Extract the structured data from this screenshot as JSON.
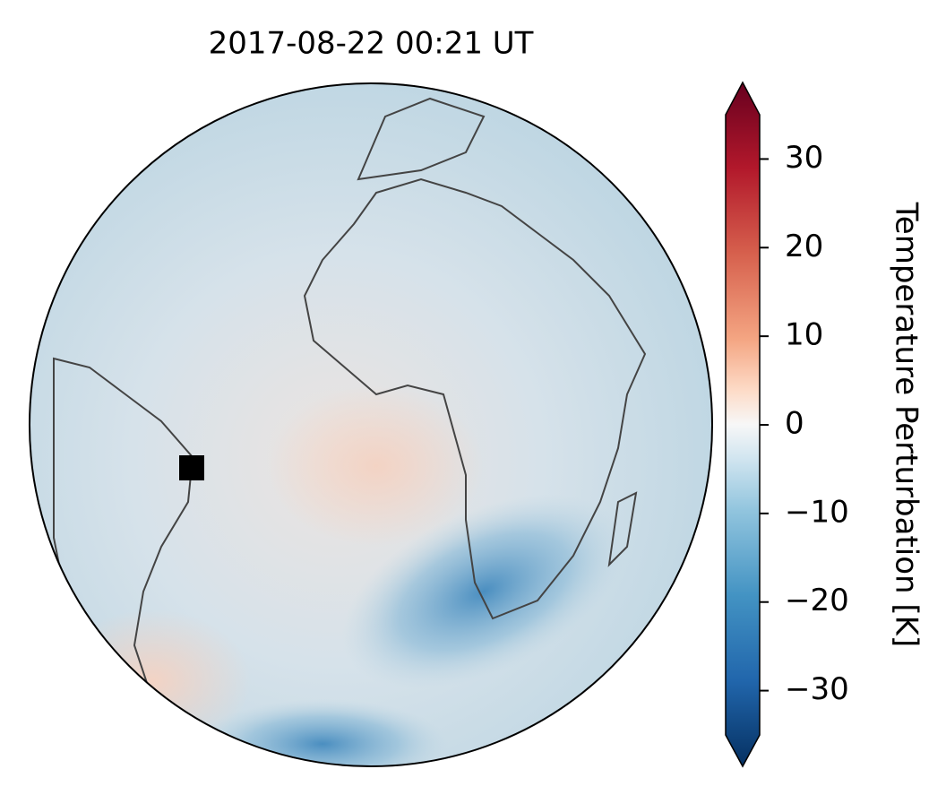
{
  "title": "2017-08-22  00:21 UT",
  "colorbar": {
    "label": "Temperature Perturbation [K]",
    "lim": [
      -35,
      35
    ],
    "ticks": [
      {
        "value": -30,
        "label": "−30"
      },
      {
        "value": -20,
        "label": "−20"
      },
      {
        "value": -10,
        "label": "−10"
      },
      0,
      10,
      20,
      30
    ]
  }
}
